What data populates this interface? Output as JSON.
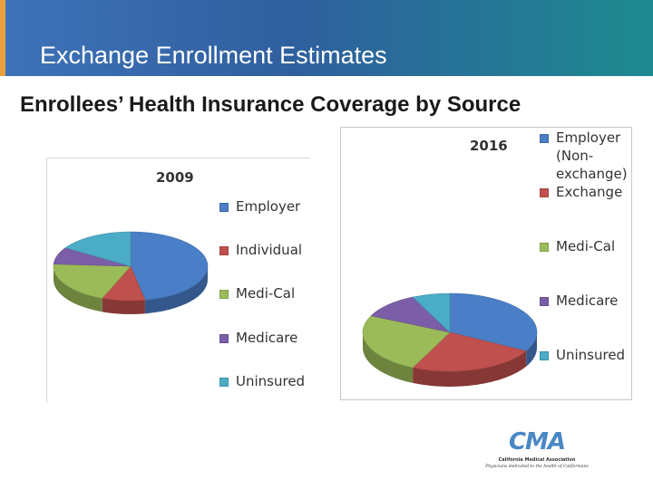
{
  "header": {
    "title": "Exchange Enrollment Estimates"
  },
  "subtitle": "Enrollees’ Health Insurance Coverage by Source",
  "chart_data": [
    {
      "type": "pie",
      "title": "2009",
      "categories": [
        "Employer",
        "Individual",
        "Medi-Cal",
        "Medicare",
        "Uninsured"
      ],
      "values": [
        47,
        9,
        20,
        8,
        16
      ],
      "colors": [
        "#4a7ec6",
        "#c0504d",
        "#9bbb59",
        "#7b5ea7",
        "#4bacc6"
      ],
      "legend_position": "right"
    },
    {
      "type": "pie",
      "title": "2016",
      "categories": [
        "Employer (Non-exchange)",
        "Exchange",
        "Medi-Cal",
        "Medicare",
        "Uninsured"
      ],
      "values": [
        33,
        24,
        25,
        11,
        7
      ],
      "colors": [
        "#4a7ec6",
        "#c0504d",
        "#9bbb59",
        "#7b5ea7",
        "#4bacc6"
      ],
      "legend_position": "right"
    }
  ],
  "logo": {
    "org": "California Medical Association",
    "tagline": "Physicians dedicated to the health of Californians"
  }
}
